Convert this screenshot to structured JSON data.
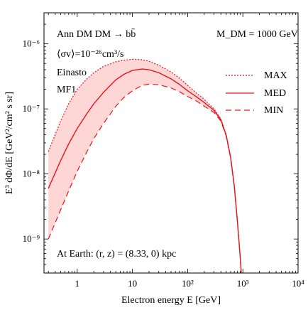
{
  "chart_data": {
    "type": "line",
    "xlabel": "Electron energy E [GeV]",
    "ylabel": "E³ dΦ/dE [GeV²/cm² s sr]",
    "xscale": "log",
    "yscale": "log",
    "xlim": [
      0.25,
      10000
    ],
    "ylim": [
      3e-10,
      3e-06
    ],
    "x_ticks": [
      {
        "value": 1,
        "label": "1"
      },
      {
        "value": 10,
        "label": "10"
      },
      {
        "value": 100,
        "label": "10²"
      },
      {
        "value": 1000,
        "label": "10³"
      },
      {
        "value": 10000,
        "label": "10⁴"
      }
    ],
    "y_ticks": [
      {
        "value": 1e-09,
        "label": "10⁻⁹"
      },
      {
        "value": 1e-08,
        "label": "10⁻⁸"
      },
      {
        "value": 1e-07,
        "label": "10⁻⁷"
      },
      {
        "value": 1e-06,
        "label": "10⁻⁶"
      }
    ],
    "annotations": {
      "channel": "Ann DM DM → bb̄",
      "cross_section": "⟨σv⟩=10⁻²⁶cm³/s",
      "profile": "Einasto",
      "model": "MF1",
      "mass": "M_DM = 1000 GeV",
      "earth": "At Earth: (r, z) = (8.33, 0) kpc"
    },
    "band": {
      "color": "#ffd6d6",
      "between": [
        "MAX",
        "MIN"
      ]
    },
    "series": [
      {
        "name": "MAX",
        "style": "dotted",
        "color": "#e8141c",
        "x": [
          0.3,
          0.5,
          0.7,
          1,
          1.5,
          2,
          3,
          5,
          7,
          10,
          15,
          20,
          30,
          50,
          70,
          100,
          150,
          200,
          300,
          400,
          500,
          600,
          700,
          800,
          900,
          1000
        ],
        "y": [
          2.2e-08,
          6.5e-08,
          1.2e-07,
          2e-07,
          2.9e-07,
          3.6e-07,
          4.5e-07,
          5.3e-07,
          5.6e-07,
          5.8e-07,
          5.7e-07,
          5.4e-07,
          4.7e-07,
          3.7e-07,
          3e-07,
          2.3e-07,
          1.7e-07,
          1.4e-07,
          1e-07,
          7e-08,
          4e-08,
          1.8e-08,
          6.5e-09,
          1.8e-09,
          5e-10,
          1.2e-10
        ]
      },
      {
        "name": "MED",
        "style": "solid",
        "color": "#e8141c",
        "x": [
          0.3,
          0.5,
          0.7,
          1,
          1.5,
          2,
          3,
          5,
          7,
          10,
          15,
          20,
          30,
          50,
          70,
          100,
          150,
          200,
          300,
          400,
          500,
          600,
          700,
          800,
          900,
          1000
        ],
        "y": [
          6e-09,
          1.6e-08,
          2.9e-08,
          5e-08,
          8.5e-08,
          1.2e-07,
          1.8e-07,
          2.8e-07,
          3.4e-07,
          3.9e-07,
          4.1e-07,
          4e-07,
          3.6e-07,
          2.9e-07,
          2.4e-07,
          1.9e-07,
          1.5e-07,
          1.25e-07,
          9.5e-08,
          6.8e-08,
          3.9e-08,
          1.8e-08,
          6.5e-09,
          1.8e-09,
          5e-10,
          1.2e-10
        ]
      },
      {
        "name": "MIN",
        "style": "dashed",
        "color": "#e8141c",
        "x": [
          0.3,
          0.5,
          0.7,
          1,
          1.5,
          2,
          3,
          5,
          7,
          10,
          15,
          20,
          30,
          50,
          70,
          100,
          150,
          200,
          300,
          400,
          500,
          600,
          700,
          800,
          900,
          1000
        ],
        "y": [
          1e-09,
          2.8e-09,
          5.5e-09,
          1.1e-08,
          2.2e-08,
          3.5e-08,
          6e-08,
          1.1e-07,
          1.5e-07,
          1.9e-07,
          2.3e-07,
          2.4e-07,
          2.35e-07,
          2.1e-07,
          1.85e-07,
          1.55e-07,
          1.3e-07,
          1.1e-07,
          8.8e-08,
          6.5e-08,
          3.8e-08,
          1.75e-08,
          6.3e-09,
          1.8e-09,
          5e-10,
          1.2e-10
        ]
      }
    ],
    "legend": {
      "placement": "top-right",
      "entries": [
        "MAX",
        "MED",
        "MIN"
      ]
    }
  }
}
